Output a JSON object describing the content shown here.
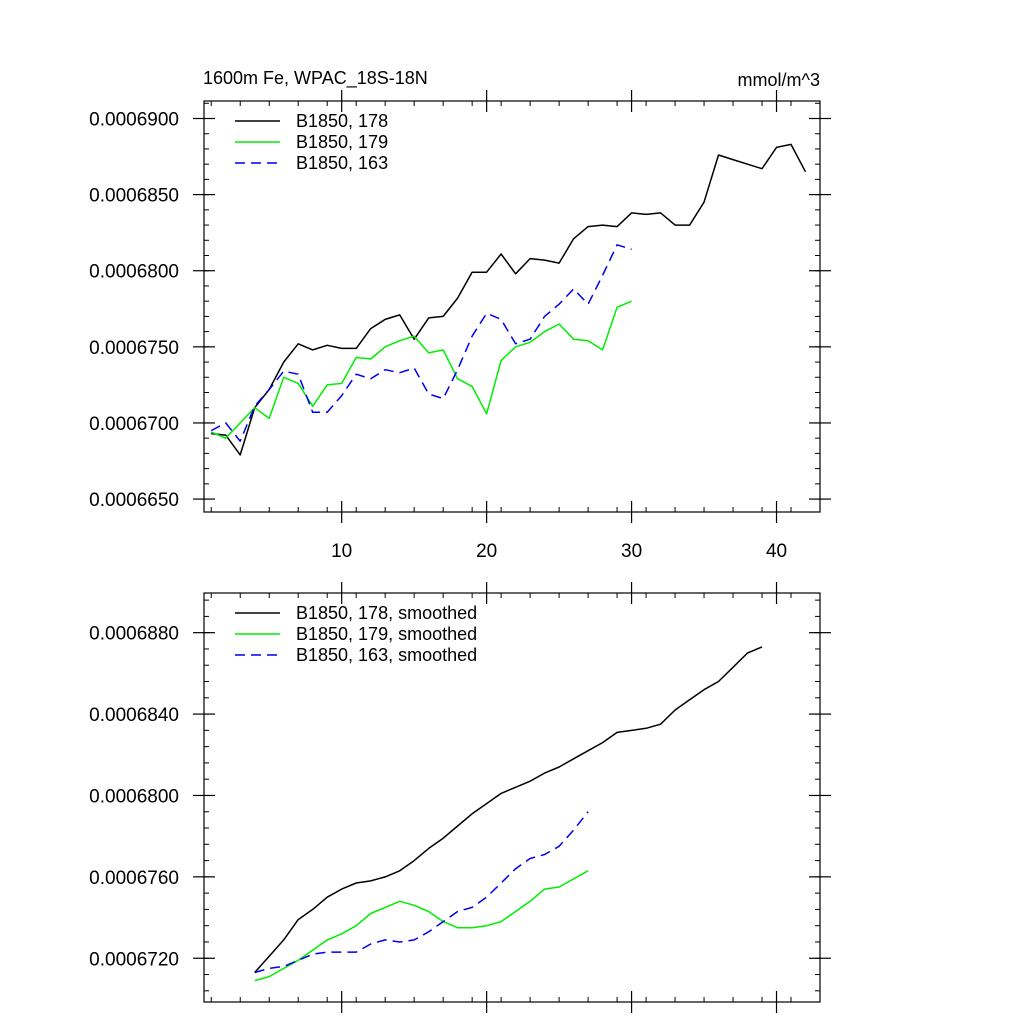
{
  "chart_data": [
    {
      "type": "line",
      "title": "1600m Fe, WPAC_18S-18N",
      "units": "mmol/m^3",
      "xlim": [
        0.5,
        43
      ],
      "ylim": [
        0.00066415,
        0.00069115
      ],
      "xticks": [
        10,
        20,
        30,
        40
      ],
      "yticks": [
        0.000665,
        0.00067,
        0.000675,
        0.00068,
        0.000685,
        0.00069
      ],
      "ytick_labels": [
        "0.0006650",
        "0.0006700",
        "0.0006750",
        "0.0006800",
        "0.0006850",
        "0.0006900"
      ],
      "series": [
        {
          "name": "B1850, 178",
          "color": "#000000",
          "dash": "solid",
          "x": [
            1,
            2,
            3,
            4,
            5,
            6,
            7,
            8,
            9,
            10,
            11,
            12,
            13,
            14,
            15,
            16,
            17,
            18,
            19,
            20,
            21,
            22,
            23,
            24,
            25,
            26,
            27,
            28,
            29,
            30,
            31,
            32,
            33,
            34,
            35,
            36,
            37,
            38,
            39,
            40,
            41,
            42
          ],
          "values": [
            0.0006693,
            0.0006692,
            0.0006679,
            0.000671,
            0.0006722,
            0.000674,
            0.0006752,
            0.0006748,
            0.0006751,
            0.0006749,
            0.0006749,
            0.0006762,
            0.0006768,
            0.0006771,
            0.0006755,
            0.0006769,
            0.000677,
            0.0006782,
            0.0006799,
            0.0006799,
            0.0006811,
            0.0006798,
            0.0006808,
            0.0006807,
            0.0006805,
            0.0006821,
            0.0006829,
            0.000683,
            0.0006829,
            0.0006838,
            0.0006837,
            0.0006838,
            0.000683,
            0.000683,
            0.0006845,
            0.0006876,
            0.0006873,
            0.000687,
            0.0006867,
            0.0006881,
            0.0006883,
            0.0006865
          ]
        },
        {
          "name": "B1850, 179",
          "color": "#00ee00",
          "dash": "solid",
          "x": [
            1,
            2,
            3,
            4,
            5,
            6,
            7,
            8,
            9,
            10,
            11,
            12,
            13,
            14,
            15,
            16,
            17,
            18,
            19,
            20,
            21,
            22,
            23,
            24,
            25,
            26,
            27,
            28,
            29,
            30
          ],
          "values": [
            0.0006694,
            0.000669,
            0.00067,
            0.000671,
            0.0006703,
            0.000673,
            0.0006726,
            0.0006711,
            0.0006725,
            0.0006726,
            0.0006743,
            0.0006742,
            0.000675,
            0.0006754,
            0.0006757,
            0.0006746,
            0.0006748,
            0.0006729,
            0.0006724,
            0.0006706,
            0.0006741,
            0.000675,
            0.0006753,
            0.000676,
            0.0006765,
            0.0006755,
            0.0006754,
            0.0006748,
            0.0006776,
            0.000678
          ]
        },
        {
          "name": "B1850, 163",
          "color": "#0000ee",
          "dash": "dashed",
          "x": [
            1,
            2,
            3,
            4,
            5,
            6,
            7,
            8,
            9,
            10,
            11,
            12,
            13,
            14,
            15,
            16,
            17,
            18,
            19,
            20,
            21,
            22,
            23,
            24,
            25,
            26,
            27,
            28,
            29,
            30
          ],
          "values": [
            0.0006695,
            0.00067,
            0.0006688,
            0.0006711,
            0.0006722,
            0.0006734,
            0.0006732,
            0.0006707,
            0.0006707,
            0.0006718,
            0.0006732,
            0.0006729,
            0.0006735,
            0.0006733,
            0.0006736,
            0.0006719,
            0.0006716,
            0.0006735,
            0.0006757,
            0.0006772,
            0.0006768,
            0.0006752,
            0.0006755,
            0.000677,
            0.0006778,
            0.0006788,
            0.0006778,
            0.0006797,
            0.0006817,
            0.0006814
          ]
        }
      ],
      "legend": "top-left"
    },
    {
      "type": "line",
      "title": "",
      "xlim": [
        0.5,
        43
      ],
      "ylim": [
        0.00066985,
        0.00068995
      ],
      "xticks": [
        10,
        20,
        30,
        40
      ],
      "yticks": [
        0.000672,
        0.000676,
        0.00068,
        0.000684,
        0.000688
      ],
      "ytick_labels": [
        "0.0006720",
        "0.0006760",
        "0.0006800",
        "0.0006840",
        "0.0006880"
      ],
      "series": [
        {
          "name": "B1850, 178, smoothed",
          "color": "#000000",
          "dash": "solid",
          "x": [
            4,
            5,
            6,
            7,
            8,
            9,
            10,
            11,
            12,
            13,
            14,
            15,
            16,
            17,
            18,
            19,
            20,
            21,
            22,
            23,
            24,
            25,
            26,
            27,
            28,
            29,
            30,
            31,
            32,
            33,
            34,
            35,
            36,
            37,
            38,
            39
          ],
          "values": [
            0.0006713,
            0.0006721,
            0.0006729,
            0.0006739,
            0.0006744,
            0.000675,
            0.0006754,
            0.0006757,
            0.0006758,
            0.000676,
            0.0006763,
            0.0006768,
            0.0006774,
            0.0006779,
            0.0006785,
            0.0006791,
            0.0006796,
            0.0006801,
            0.0006804,
            0.0006807,
            0.0006811,
            0.0006814,
            0.0006818,
            0.0006822,
            0.0006826,
            0.0006831,
            0.0006832,
            0.0006833,
            0.0006835,
            0.0006842,
            0.0006847,
            0.0006852,
            0.0006856,
            0.0006863,
            0.000687,
            0.0006873
          ]
        },
        {
          "name": "B1850, 179, smoothed",
          "color": "#00ee00",
          "dash": "solid",
          "x": [
            4,
            5,
            6,
            7,
            8,
            9,
            10,
            11,
            12,
            13,
            14,
            15,
            16,
            17,
            18,
            19,
            20,
            21,
            22,
            23,
            24,
            25,
            26,
            27
          ],
          "values": [
            0.0006709,
            0.0006711,
            0.0006715,
            0.0006719,
            0.0006724,
            0.0006729,
            0.0006732,
            0.0006736,
            0.0006742,
            0.0006745,
            0.0006748,
            0.0006746,
            0.0006743,
            0.0006738,
            0.0006735,
            0.0006735,
            0.0006736,
            0.0006738,
            0.0006743,
            0.0006748,
            0.0006754,
            0.0006755,
            0.0006759,
            0.0006763
          ]
        },
        {
          "name": "B1850, 163, smoothed",
          "color": "#0000ee",
          "dash": "dashed",
          "x": [
            4,
            5,
            6,
            7,
            8,
            9,
            10,
            11,
            12,
            13,
            14,
            15,
            16,
            17,
            18,
            19,
            20,
            21,
            22,
            23,
            24,
            25,
            26,
            27
          ],
          "values": [
            0.0006713,
            0.0006715,
            0.0006716,
            0.0006719,
            0.0006722,
            0.0006723,
            0.0006723,
            0.0006723,
            0.0006727,
            0.0006729,
            0.0006728,
            0.0006729,
            0.0006733,
            0.0006738,
            0.0006743,
            0.0006745,
            0.000675,
            0.0006757,
            0.0006764,
            0.0006769,
            0.0006771,
            0.0006775,
            0.0006783,
            0.0006792
          ]
        }
      ],
      "legend": "top-left"
    }
  ]
}
